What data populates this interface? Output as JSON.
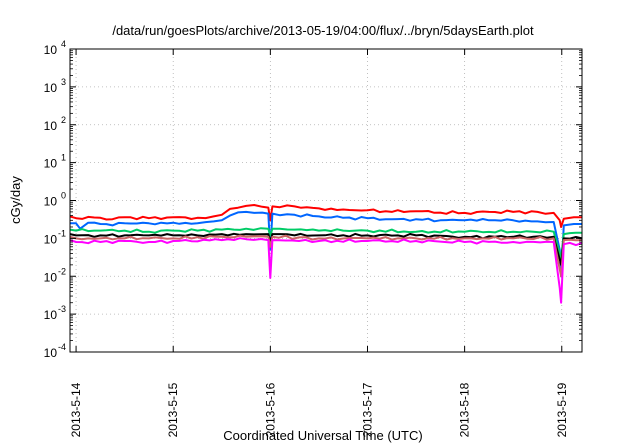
{
  "chart_data": {
    "type": "line",
    "title": "/data/run/goesPlots/archive/2013-05-19/04:00/flux/../bryn/5daysEarth.plot",
    "xlabel": "Coordinated Universal Time (UTC)",
    "ylabel": "cGy/day",
    "y_scale": "log",
    "ylim": [
      0.0001,
      10000
    ],
    "y_ticks": [
      {
        "value": 0.0001,
        "base": "10",
        "exp": "-4"
      },
      {
        "value": 0.001,
        "base": "10",
        "exp": "-3"
      },
      {
        "value": 0.01,
        "base": "10",
        "exp": "-2"
      },
      {
        "value": 0.1,
        "base": "10",
        "exp": "-1"
      },
      {
        "value": 1,
        "base": "10",
        "exp": "0"
      },
      {
        "value": 10,
        "base": "10",
        "exp": "1"
      },
      {
        "value": 100,
        "base": "10",
        "exp": "2"
      },
      {
        "value": 1000,
        "base": "10",
        "exp": "3"
      },
      {
        "value": 10000,
        "base": "10",
        "exp": "4"
      }
    ],
    "xlim": [
      "2013-05-13 22:30",
      "2013-05-19 05:00"
    ],
    "x_ticks": [
      "2013-5-14",
      "2013-5-15",
      "2013-5-16",
      "2013-5-17",
      "2013-5-18",
      "2013-5-19"
    ],
    "grid": true,
    "series": [
      {
        "color": "#ff0000",
        "points": [
          [
            "2013-05-13 22:30",
            0.38
          ],
          [
            "2013-05-14 00:00",
            0.34
          ],
          [
            "2013-05-14 03:00",
            0.37
          ],
          [
            "2013-05-14 06:00",
            0.35
          ],
          [
            "2013-05-14 09:00",
            0.32
          ],
          [
            "2013-05-14 12:00",
            0.36
          ],
          [
            "2013-05-14 18:00",
            0.34
          ],
          [
            "2013-05-15 00:00",
            0.36
          ],
          [
            "2013-05-15 06:00",
            0.35
          ],
          [
            "2013-05-15 10:00",
            0.38
          ],
          [
            "2013-05-15 12:00",
            0.42
          ],
          [
            "2013-05-15 14:00",
            0.6
          ],
          [
            "2013-05-15 18:00",
            0.72
          ],
          [
            "2013-05-15 22:00",
            0.68
          ],
          [
            "2013-05-15 23:30",
            0.65
          ],
          [
            "2013-05-16 00:00",
            0.3
          ],
          [
            "2013-05-16 00:30",
            0.7
          ],
          [
            "2013-05-16 06:00",
            0.7
          ],
          [
            "2013-05-16 12:00",
            0.62
          ],
          [
            "2013-05-16 18:00",
            0.58
          ],
          [
            "2013-05-17 00:00",
            0.55
          ],
          [
            "2013-05-17 06:00",
            0.5
          ],
          [
            "2013-05-17 12:00",
            0.52
          ],
          [
            "2013-05-17 18:00",
            0.48
          ],
          [
            "2013-05-18 00:00",
            0.47
          ],
          [
            "2013-05-18 06:00",
            0.5
          ],
          [
            "2013-05-18 12:00",
            0.5
          ],
          [
            "2013-05-18 18:00",
            0.5
          ],
          [
            "2013-05-18 22:00",
            0.47
          ],
          [
            "2013-05-18 23:30",
            0.3
          ],
          [
            "2013-05-18 23:50",
            0.2
          ],
          [
            "2013-05-19 00:30",
            0.33
          ],
          [
            "2013-05-19 03:00",
            0.36
          ],
          [
            "2013-05-19 05:00",
            0.36
          ]
        ]
      },
      {
        "color": "#0066ff",
        "points": [
          [
            "2013-05-13 22:30",
            0.25
          ],
          [
            "2013-05-14 00:00",
            0.25
          ],
          [
            "2013-05-14 01:00",
            0.18
          ],
          [
            "2013-05-14 03:00",
            0.26
          ],
          [
            "2013-05-14 06:00",
            0.24
          ],
          [
            "2013-05-14 09:00",
            0.22
          ],
          [
            "2013-05-14 12:00",
            0.25
          ],
          [
            "2013-05-14 18:00",
            0.25
          ],
          [
            "2013-05-15 00:00",
            0.26
          ],
          [
            "2013-05-15 06:00",
            0.25
          ],
          [
            "2013-05-15 10:00",
            0.28
          ],
          [
            "2013-05-15 12:00",
            0.3
          ],
          [
            "2013-05-15 14:00",
            0.4
          ],
          [
            "2013-05-15 18:00",
            0.5
          ],
          [
            "2013-05-15 22:00",
            0.48
          ],
          [
            "2013-05-15 23:30",
            0.45
          ],
          [
            "2013-05-16 00:00",
            0.05
          ],
          [
            "2013-05-16 00:30",
            0.45
          ],
          [
            "2013-05-16 06:00",
            0.42
          ],
          [
            "2013-05-16 12:00",
            0.38
          ],
          [
            "2013-05-16 18:00",
            0.35
          ],
          [
            "2013-05-17 00:00",
            0.34
          ],
          [
            "2013-05-17 06:00",
            0.32
          ],
          [
            "2013-05-17 12:00",
            0.32
          ],
          [
            "2013-05-17 18:00",
            0.3
          ],
          [
            "2013-05-18 00:00",
            0.3
          ],
          [
            "2013-05-18 06:00",
            0.3
          ],
          [
            "2013-05-18 12:00",
            0.3
          ],
          [
            "2013-05-18 18:00",
            0.28
          ],
          [
            "2013-05-18 22:00",
            0.27
          ],
          [
            "2013-05-18 23:30",
            0.05
          ],
          [
            "2013-05-18 23:50",
            0.01
          ],
          [
            "2013-05-19 00:30",
            0.22
          ],
          [
            "2013-05-19 03:00",
            0.24
          ],
          [
            "2013-05-19 05:00",
            0.24
          ]
        ]
      },
      {
        "color": "#00cc66",
        "points": [
          [
            "2013-05-13 22:30",
            0.17
          ],
          [
            "2013-05-14 00:00",
            0.16
          ],
          [
            "2013-05-14 06:00",
            0.16
          ],
          [
            "2013-05-14 12:00",
            0.16
          ],
          [
            "2013-05-14 18:00",
            0.15
          ],
          [
            "2013-05-15 00:00",
            0.16
          ],
          [
            "2013-05-15 06:00",
            0.16
          ],
          [
            "2013-05-15 12:00",
            0.17
          ],
          [
            "2013-05-15 18:00",
            0.18
          ],
          [
            "2013-05-15 23:30",
            0.18
          ],
          [
            "2013-05-16 00:00",
            0.12
          ],
          [
            "2013-05-16 00:30",
            0.18
          ],
          [
            "2013-05-16 06:00",
            0.17
          ],
          [
            "2013-05-16 12:00",
            0.16
          ],
          [
            "2013-05-16 18:00",
            0.16
          ],
          [
            "2013-05-17 00:00",
            0.16
          ],
          [
            "2013-05-17 12:00",
            0.15
          ],
          [
            "2013-05-18 00:00",
            0.15
          ],
          [
            "2013-05-18 12:00",
            0.15
          ],
          [
            "2013-05-18 22:00",
            0.15
          ],
          [
            "2013-05-18 23:50",
            0.03
          ],
          [
            "2013-05-19 00:30",
            0.13
          ],
          [
            "2013-05-19 05:00",
            0.14
          ]
        ]
      },
      {
        "color": "#000000",
        "points": [
          [
            "2013-05-13 22:30",
            0.13
          ],
          [
            "2013-05-14 00:00",
            0.12
          ],
          [
            "2013-05-14 06:00",
            0.12
          ],
          [
            "2013-05-14 12:00",
            0.12
          ],
          [
            "2013-05-14 18:00",
            0.12
          ],
          [
            "2013-05-15 00:00",
            0.12
          ],
          [
            "2013-05-15 06:00",
            0.12
          ],
          [
            "2013-05-15 12:00",
            0.13
          ],
          [
            "2013-05-15 18:00",
            0.13
          ],
          [
            "2013-05-15 23:30",
            0.13
          ],
          [
            "2013-05-16 00:00",
            0.08
          ],
          [
            "2013-05-16 00:30",
            0.13
          ],
          [
            "2013-05-16 06:00",
            0.12
          ],
          [
            "2013-05-16 12:00",
            0.12
          ],
          [
            "2013-05-17 00:00",
            0.12
          ],
          [
            "2013-05-17 12:00",
            0.12
          ],
          [
            "2013-05-18 00:00",
            0.11
          ],
          [
            "2013-05-18 12:00",
            0.11
          ],
          [
            "2013-05-18 22:00",
            0.11
          ],
          [
            "2013-05-18 23:50",
            0.02
          ],
          [
            "2013-05-19 00:30",
            0.1
          ],
          [
            "2013-05-19 05:00",
            0.1
          ]
        ]
      },
      {
        "color": "#cc6666",
        "points": [
          [
            "2013-05-13 22:30",
            0.11
          ],
          [
            "2013-05-14 00:00",
            0.1
          ],
          [
            "2013-05-14 06:00",
            0.1
          ],
          [
            "2013-05-14 12:00",
            0.1
          ],
          [
            "2013-05-14 18:00",
            0.1
          ],
          [
            "2013-05-15 00:00",
            0.1
          ],
          [
            "2013-05-15 12:00",
            0.11
          ],
          [
            "2013-05-15 18:00",
            0.11
          ],
          [
            "2013-05-15 23:30",
            0.11
          ],
          [
            "2013-05-16 00:00",
            0.06
          ],
          [
            "2013-05-16 00:30",
            0.11
          ],
          [
            "2013-05-16 12:00",
            0.1
          ],
          [
            "2013-05-17 00:00",
            0.1
          ],
          [
            "2013-05-17 12:00",
            0.1
          ],
          [
            "2013-05-18 00:00",
            0.1
          ],
          [
            "2013-05-18 12:00",
            0.1
          ],
          [
            "2013-05-18 22:00",
            0.1
          ],
          [
            "2013-05-18 23:50",
            0.01
          ],
          [
            "2013-05-19 00:30",
            0.09
          ],
          [
            "2013-05-19 05:00",
            0.09
          ]
        ]
      },
      {
        "color": "#ff00ff",
        "points": [
          [
            "2013-05-13 22:30",
            0.09
          ],
          [
            "2013-05-14 00:00",
            0.08
          ],
          [
            "2013-05-14 06:00",
            0.08
          ],
          [
            "2013-05-14 12:00",
            0.085
          ],
          [
            "2013-05-14 18:00",
            0.08
          ],
          [
            "2013-05-15 00:00",
            0.085
          ],
          [
            "2013-05-15 12:00",
            0.09
          ],
          [
            "2013-05-15 18:00",
            0.095
          ],
          [
            "2013-05-15 23:30",
            0.09
          ],
          [
            "2013-05-16 00:00",
            0.009
          ],
          [
            "2013-05-16 00:30",
            0.09
          ],
          [
            "2013-05-16 12:00",
            0.085
          ],
          [
            "2013-05-17 00:00",
            0.085
          ],
          [
            "2013-05-17 12:00",
            0.085
          ],
          [
            "2013-05-18 00:00",
            0.08
          ],
          [
            "2013-05-18 12:00",
            0.08
          ],
          [
            "2013-05-18 22:00",
            0.08
          ],
          [
            "2013-05-18 23:30",
            0.005
          ],
          [
            "2013-05-18 23:50",
            0.002
          ],
          [
            "2013-05-19 00:30",
            0.07
          ],
          [
            "2013-05-19 05:00",
            0.075
          ]
        ]
      }
    ]
  }
}
